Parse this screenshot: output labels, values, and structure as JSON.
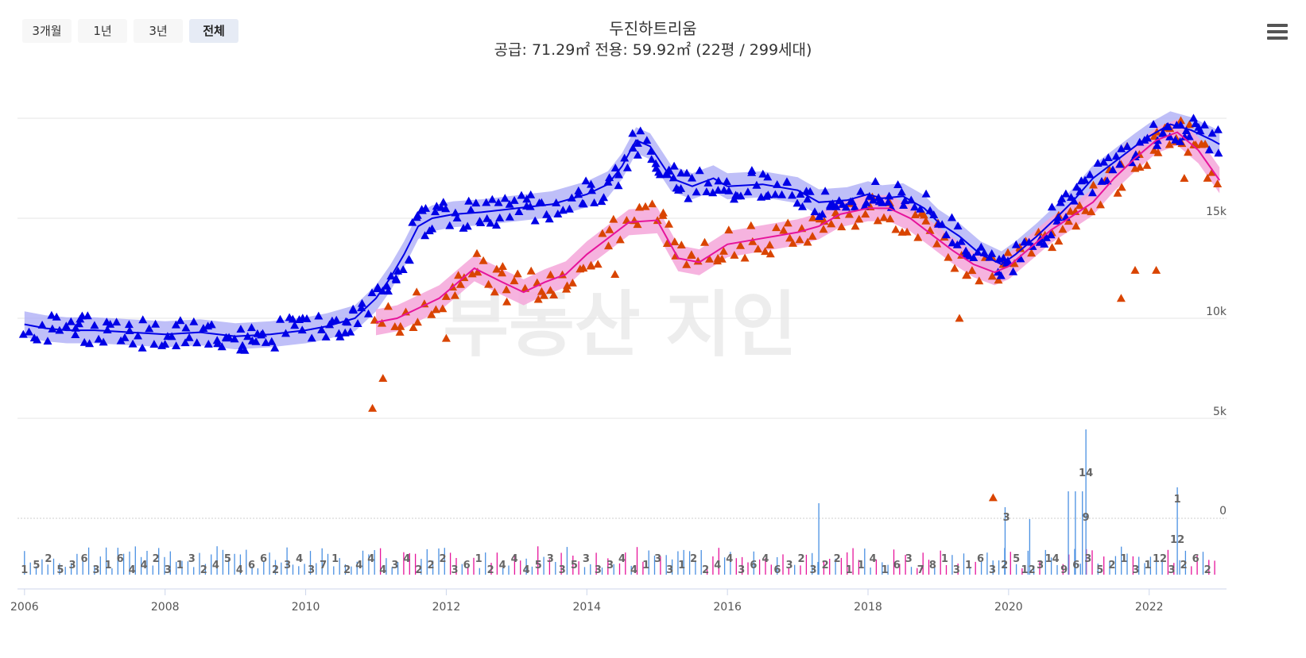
{
  "controls": {
    "range_buttons": [
      "3개월",
      "1년",
      "3년",
      "전체"
    ],
    "active_range": "전체"
  },
  "header": {
    "title": "두진하트리움",
    "subtitle": "공급: 71.29㎡ 전용: 59.92㎡ (22평 / 299세대)"
  },
  "icons": {
    "menu": "hamburger-menu-icon"
  },
  "colors": {
    "sale": "#0000e6",
    "sale_band": "#a9a9f5",
    "jeonse": "#d94400",
    "jeonse_line": "#e6149b",
    "jeonse_band": "#f5a6d9",
    "volume_sale": "#4a90e2",
    "volume_jeonse": "#e6149b"
  },
  "watermark": "부동산 지인",
  "chart_data": {
    "type": "scatter",
    "x_ticks": [
      "2006",
      "2008",
      "2010",
      "2012",
      "2014",
      "2016",
      "2018",
      "2020",
      "2022"
    ],
    "y_ticks": [
      "5k",
      "10k",
      "15k"
    ],
    "volume_zero_label": "0",
    "xlim": [
      2005.9,
      2023.1
    ],
    "price_ylim": [
      4500,
      20500
    ],
    "series": [
      {
        "kind": "sale_trend",
        "points": [
          [
            2006.0,
            9700
          ],
          [
            2006.3,
            9500
          ],
          [
            2006.6,
            9400
          ],
          [
            2007.0,
            9400
          ],
          [
            2007.5,
            9300
          ],
          [
            2008.0,
            9200
          ],
          [
            2008.5,
            9300
          ],
          [
            2009.0,
            9100
          ],
          [
            2009.5,
            9200
          ],
          [
            2010.0,
            9400
          ],
          [
            2010.3,
            9600
          ],
          [
            2010.7,
            10000
          ],
          [
            2011.0,
            11000
          ],
          [
            2011.2,
            12000
          ],
          [
            2011.4,
            13200
          ],
          [
            2011.6,
            14600
          ],
          [
            2011.8,
            15000
          ],
          [
            2012.1,
            15200
          ],
          [
            2012.5,
            15300
          ],
          [
            2013.0,
            15500
          ],
          [
            2013.5,
            15700
          ],
          [
            2014.0,
            16200
          ],
          [
            2014.3,
            16700
          ],
          [
            2014.5,
            17600
          ],
          [
            2014.7,
            18900
          ],
          [
            2014.9,
            18600
          ],
          [
            2015.2,
            17000
          ],
          [
            2015.5,
            16600
          ],
          [
            2015.8,
            17000
          ],
          [
            2016.0,
            16600
          ],
          [
            2016.5,
            16700
          ],
          [
            2017.0,
            16400
          ],
          [
            2017.3,
            15800
          ],
          [
            2017.7,
            15900
          ],
          [
            2018.0,
            16200
          ],
          [
            2018.2,
            16000
          ],
          [
            2018.5,
            16100
          ],
          [
            2018.8,
            15500
          ],
          [
            2019.0,
            14800
          ],
          [
            2019.3,
            14100
          ],
          [
            2019.6,
            13200
          ],
          [
            2019.9,
            12700
          ],
          [
            2020.1,
            13200
          ],
          [
            2020.4,
            14100
          ],
          [
            2020.7,
            15100
          ],
          [
            2020.9,
            15800
          ],
          [
            2021.2,
            17000
          ],
          [
            2021.5,
            17800
          ],
          [
            2021.8,
            18600
          ],
          [
            2022.0,
            19100
          ],
          [
            2022.3,
            19700
          ],
          [
            2022.6,
            19400
          ],
          [
            2022.9,
            18900
          ],
          [
            2023.0,
            18700
          ]
        ]
      },
      {
        "kind": "jeonse_trend",
        "points": [
          [
            2011.0,
            9800
          ],
          [
            2011.3,
            10000
          ],
          [
            2011.6,
            10500
          ],
          [
            2011.9,
            11000
          ],
          [
            2012.1,
            11600
          ],
          [
            2012.4,
            12500
          ],
          [
            2012.8,
            11800
          ],
          [
            2013.1,
            11300
          ],
          [
            2013.4,
            11800
          ],
          [
            2013.7,
            12200
          ],
          [
            2014.0,
            13200
          ],
          [
            2014.3,
            14000
          ],
          [
            2014.6,
            14800
          ],
          [
            2015.0,
            14900
          ],
          [
            2015.3,
            13000
          ],
          [
            2015.6,
            12800
          ],
          [
            2016.0,
            13700
          ],
          [
            2016.5,
            14000
          ],
          [
            2017.0,
            14300
          ],
          [
            2017.3,
            14600
          ],
          [
            2017.6,
            15200
          ],
          [
            2018.0,
            15500
          ],
          [
            2018.3,
            15500
          ],
          [
            2018.6,
            15000
          ],
          [
            2018.9,
            14200
          ],
          [
            2019.2,
            13400
          ],
          [
            2019.5,
            12700
          ],
          [
            2019.8,
            12300
          ],
          [
            2020.0,
            12600
          ],
          [
            2020.3,
            13500
          ],
          [
            2020.6,
            14400
          ],
          [
            2020.9,
            15100
          ],
          [
            2021.2,
            15800
          ],
          [
            2021.5,
            17000
          ],
          [
            2021.8,
            18000
          ],
          [
            2022.1,
            18900
          ],
          [
            2022.4,
            19300
          ],
          [
            2022.7,
            18400
          ],
          [
            2023.0,
            16900
          ]
        ]
      }
    ],
    "volume_labels": [
      "1",
      "5",
      "2",
      "5",
      "3",
      "6",
      "3",
      "1",
      "6",
      "4",
      "4",
      "2",
      "3",
      "1",
      "3",
      "2",
      "4",
      "5",
      "4",
      "6",
      "6",
      "2",
      "3",
      "4",
      "3",
      "7",
      "1",
      "2",
      "4",
      "4",
      "4",
      "3",
      "4",
      "2",
      "2",
      "2",
      "3",
      "6",
      "1",
      "2",
      "4",
      "4",
      "4",
      "5",
      "3",
      "3",
      "5",
      "3",
      "3",
      "3",
      "4",
      "4",
      "1",
      "3",
      "3",
      "1",
      "2",
      "2",
      "4",
      "4",
      "3",
      "6",
      "4",
      "6",
      "3",
      "2",
      "3",
      "2",
      "2",
      "1",
      "1",
      "4",
      "1",
      "6",
      "3",
      "7",
      "8",
      "1",
      "3",
      "1",
      "6",
      "3",
      "2",
      "5",
      "12",
      "3",
      "14",
      "9",
      "6",
      "3",
      "5",
      "2",
      "1",
      "3",
      "1",
      "12",
      "3",
      "2",
      "6",
      "2"
    ],
    "volume_peaks": [
      {
        "year": 2019.97,
        "label": "3"
      },
      {
        "year": 2021.1,
        "label": "14"
      },
      {
        "year": 2021.1,
        "label": "9"
      },
      {
        "year": 2022.4,
        "label": "1"
      },
      {
        "year": 2022.4,
        "label": "12"
      }
    ]
  }
}
